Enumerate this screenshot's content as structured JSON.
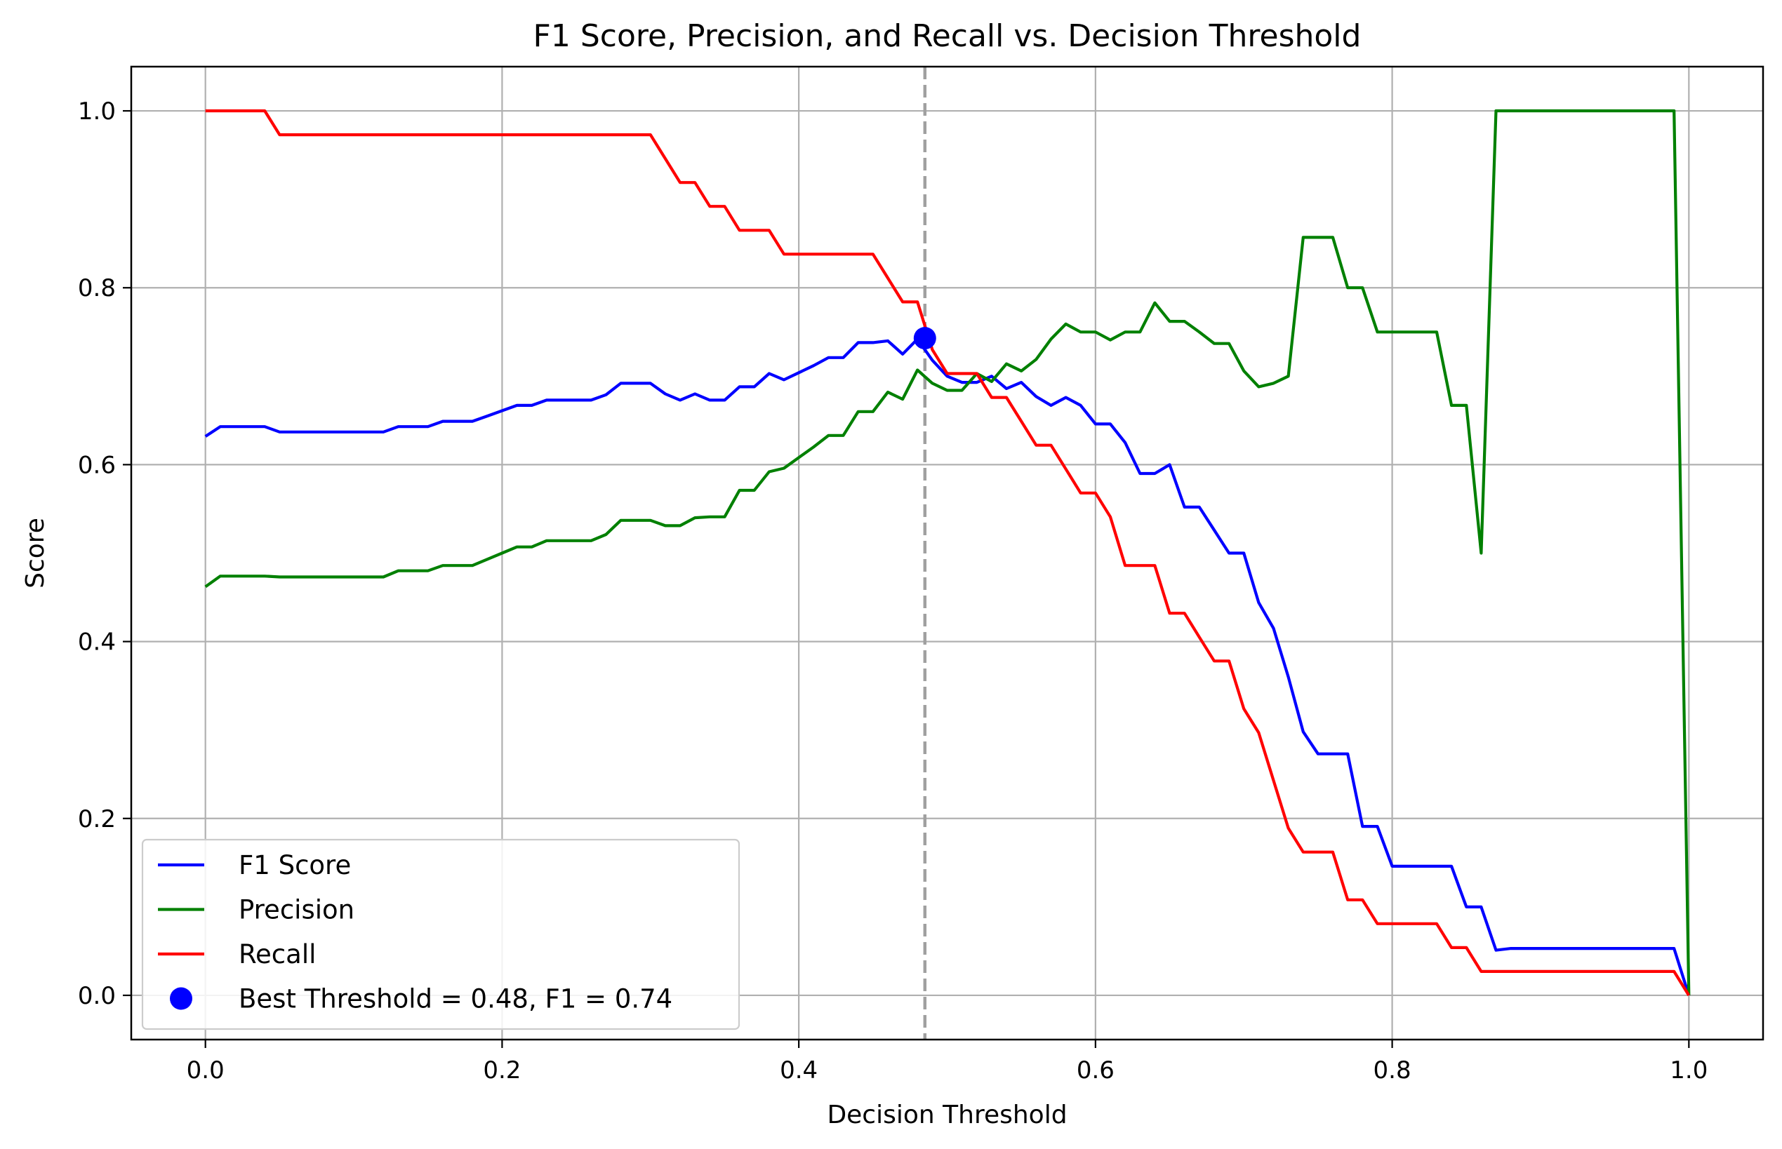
{
  "chart_data": {
    "type": "line",
    "title": "F1 Score, Precision, and Recall vs. Decision Threshold",
    "xlabel": "Decision Threshold",
    "ylabel": "Score",
    "xlim": [
      -0.05,
      1.05
    ],
    "ylim": [
      -0.05,
      1.05
    ],
    "xticks": [
      0.0,
      0.2,
      0.4,
      0.6,
      0.8,
      1.0
    ],
    "xtick_labels": [
      "0.0",
      "0.2",
      "0.4",
      "0.6",
      "0.8",
      "1.0"
    ],
    "yticks": [
      0.0,
      0.2,
      0.4,
      0.6,
      0.8,
      1.0
    ],
    "ytick_labels": [
      "0.0",
      "0.2",
      "0.4",
      "0.6",
      "0.8",
      "1.0"
    ],
    "grid": true,
    "legend_position": "lower-left",
    "series": [
      {
        "name": "F1 Score",
        "color": "#0000ff",
        "points": [
          [
            0.0,
            0.632
          ],
          [
            0.01,
            0.643
          ],
          [
            0.02,
            0.643
          ],
          [
            0.03,
            0.643
          ],
          [
            0.04,
            0.643
          ],
          [
            0.05,
            0.637
          ],
          [
            0.06,
            0.637
          ],
          [
            0.07,
            0.637
          ],
          [
            0.08,
            0.637
          ],
          [
            0.09,
            0.637
          ],
          [
            0.1,
            0.637
          ],
          [
            0.11,
            0.637
          ],
          [
            0.12,
            0.637
          ],
          [
            0.13,
            0.643
          ],
          [
            0.14,
            0.643
          ],
          [
            0.15,
            0.643
          ],
          [
            0.16,
            0.649
          ],
          [
            0.17,
            0.649
          ],
          [
            0.18,
            0.649
          ],
          [
            0.19,
            0.655
          ],
          [
            0.2,
            0.661
          ],
          [
            0.21,
            0.667
          ],
          [
            0.22,
            0.667
          ],
          [
            0.23,
            0.673
          ],
          [
            0.24,
            0.673
          ],
          [
            0.25,
            0.673
          ],
          [
            0.26,
            0.673
          ],
          [
            0.27,
            0.679
          ],
          [
            0.28,
            0.692
          ],
          [
            0.29,
            0.692
          ],
          [
            0.3,
            0.692
          ],
          [
            0.31,
            0.68
          ],
          [
            0.32,
            0.673
          ],
          [
            0.33,
            0.68
          ],
          [
            0.34,
            0.673
          ],
          [
            0.35,
            0.673
          ],
          [
            0.36,
            0.688
          ],
          [
            0.37,
            0.688
          ],
          [
            0.38,
            0.703
          ],
          [
            0.39,
            0.696
          ],
          [
            0.4,
            0.704
          ],
          [
            0.41,
            0.712
          ],
          [
            0.42,
            0.721
          ],
          [
            0.43,
            0.721
          ],
          [
            0.44,
            0.738
          ],
          [
            0.45,
            0.738
          ],
          [
            0.46,
            0.74
          ],
          [
            0.47,
            0.725
          ],
          [
            0.48,
            0.742
          ],
          [
            0.49,
            0.718
          ],
          [
            0.5,
            0.7
          ],
          [
            0.51,
            0.693
          ],
          [
            0.52,
            0.693
          ],
          [
            0.53,
            0.7
          ],
          [
            0.54,
            0.686
          ],
          [
            0.55,
            0.693
          ],
          [
            0.56,
            0.677
          ],
          [
            0.57,
            0.667
          ],
          [
            0.58,
            0.676
          ],
          [
            0.59,
            0.667
          ],
          [
            0.6,
            0.646
          ],
          [
            0.61,
            0.646
          ],
          [
            0.62,
            0.625
          ],
          [
            0.63,
            0.59
          ],
          [
            0.64,
            0.59
          ],
          [
            0.65,
            0.6
          ],
          [
            0.66,
            0.552
          ],
          [
            0.67,
            0.552
          ],
          [
            0.68,
            0.526
          ],
          [
            0.69,
            0.5
          ],
          [
            0.7,
            0.5
          ],
          [
            0.71,
            0.444
          ],
          [
            0.72,
            0.415
          ],
          [
            0.73,
            0.36
          ],
          [
            0.74,
            0.298
          ],
          [
            0.75,
            0.273
          ],
          [
            0.76,
            0.273
          ],
          [
            0.77,
            0.273
          ],
          [
            0.78,
            0.191
          ],
          [
            0.79,
            0.191
          ],
          [
            0.8,
            0.146
          ],
          [
            0.81,
            0.146
          ],
          [
            0.82,
            0.146
          ],
          [
            0.83,
            0.146
          ],
          [
            0.84,
            0.146
          ],
          [
            0.85,
            0.1
          ],
          [
            0.86,
            0.1
          ],
          [
            0.87,
            0.051
          ],
          [
            0.88,
            0.053
          ],
          [
            0.89,
            0.053
          ],
          [
            0.9,
            0.053
          ],
          [
            0.91,
            0.053
          ],
          [
            0.92,
            0.053
          ],
          [
            0.93,
            0.053
          ],
          [
            0.94,
            0.053
          ],
          [
            0.95,
            0.053
          ],
          [
            0.96,
            0.053
          ],
          [
            0.97,
            0.053
          ],
          [
            0.98,
            0.053
          ],
          [
            0.99,
            0.053
          ],
          [
            1.0,
            0.0
          ]
        ]
      },
      {
        "name": "Precision",
        "color": "#008000",
        "points": [
          [
            0.0,
            0.462
          ],
          [
            0.01,
            0.474
          ],
          [
            0.02,
            0.474
          ],
          [
            0.03,
            0.474
          ],
          [
            0.04,
            0.474
          ],
          [
            0.05,
            0.473
          ],
          [
            0.06,
            0.473
          ],
          [
            0.07,
            0.473
          ],
          [
            0.08,
            0.473
          ],
          [
            0.09,
            0.473
          ],
          [
            0.1,
            0.473
          ],
          [
            0.11,
            0.473
          ],
          [
            0.12,
            0.473
          ],
          [
            0.13,
            0.48
          ],
          [
            0.14,
            0.48
          ],
          [
            0.15,
            0.48
          ],
          [
            0.16,
            0.486
          ],
          [
            0.17,
            0.486
          ],
          [
            0.18,
            0.486
          ],
          [
            0.19,
            0.493
          ],
          [
            0.2,
            0.5
          ],
          [
            0.21,
            0.507
          ],
          [
            0.22,
            0.507
          ],
          [
            0.23,
            0.514
          ],
          [
            0.24,
            0.514
          ],
          [
            0.25,
            0.514
          ],
          [
            0.26,
            0.514
          ],
          [
            0.27,
            0.521
          ],
          [
            0.28,
            0.537
          ],
          [
            0.29,
            0.537
          ],
          [
            0.3,
            0.537
          ],
          [
            0.31,
            0.531
          ],
          [
            0.32,
            0.531
          ],
          [
            0.33,
            0.54
          ],
          [
            0.34,
            0.541
          ],
          [
            0.35,
            0.541
          ],
          [
            0.36,
            0.571
          ],
          [
            0.37,
            0.571
          ],
          [
            0.38,
            0.592
          ],
          [
            0.39,
            0.596
          ],
          [
            0.4,
            0.608
          ],
          [
            0.41,
            0.62
          ],
          [
            0.42,
            0.633
          ],
          [
            0.43,
            0.633
          ],
          [
            0.44,
            0.66
          ],
          [
            0.45,
            0.66
          ],
          [
            0.46,
            0.682
          ],
          [
            0.47,
            0.674
          ],
          [
            0.48,
            0.707
          ],
          [
            0.49,
            0.692
          ],
          [
            0.5,
            0.684
          ],
          [
            0.51,
            0.684
          ],
          [
            0.52,
            0.703
          ],
          [
            0.53,
            0.694
          ],
          [
            0.54,
            0.714
          ],
          [
            0.55,
            0.706
          ],
          [
            0.56,
            0.719
          ],
          [
            0.57,
            0.742
          ],
          [
            0.58,
            0.759
          ],
          [
            0.59,
            0.75
          ],
          [
            0.6,
            0.75
          ],
          [
            0.61,
            0.741
          ],
          [
            0.62,
            0.75
          ],
          [
            0.63,
            0.75
          ],
          [
            0.64,
            0.783
          ],
          [
            0.65,
            0.762
          ],
          [
            0.66,
            0.762
          ],
          [
            0.67,
            0.75
          ],
          [
            0.68,
            0.737
          ],
          [
            0.69,
            0.737
          ],
          [
            0.7,
            0.706
          ],
          [
            0.71,
            0.688
          ],
          [
            0.72,
            0.692
          ],
          [
            0.73,
            0.7
          ],
          [
            0.74,
            0.857
          ],
          [
            0.75,
            0.857
          ],
          [
            0.76,
            0.857
          ],
          [
            0.77,
            0.8
          ],
          [
            0.78,
            0.8
          ],
          [
            0.79,
            0.75
          ],
          [
            0.8,
            0.75
          ],
          [
            0.81,
            0.75
          ],
          [
            0.82,
            0.75
          ],
          [
            0.83,
            0.75
          ],
          [
            0.84,
            0.667
          ],
          [
            0.85,
            0.667
          ],
          [
            0.86,
            0.5
          ],
          [
            0.87,
            1.0
          ],
          [
            0.88,
            1.0
          ],
          [
            0.89,
            1.0
          ],
          [
            0.9,
            1.0
          ],
          [
            0.91,
            1.0
          ],
          [
            0.92,
            1.0
          ],
          [
            0.93,
            1.0
          ],
          [
            0.94,
            1.0
          ],
          [
            0.95,
            1.0
          ],
          [
            0.96,
            1.0
          ],
          [
            0.97,
            1.0
          ],
          [
            0.98,
            1.0
          ],
          [
            0.99,
            1.0
          ],
          [
            1.0,
            0.0
          ]
        ]
      },
      {
        "name": "Recall",
        "color": "#ff0000",
        "points": [
          [
            0.0,
            1.0
          ],
          [
            0.01,
            1.0
          ],
          [
            0.02,
            1.0
          ],
          [
            0.03,
            1.0
          ],
          [
            0.04,
            1.0
          ],
          [
            0.05,
            0.973
          ],
          [
            0.06,
            0.973
          ],
          [
            0.07,
            0.973
          ],
          [
            0.08,
            0.973
          ],
          [
            0.09,
            0.973
          ],
          [
            0.1,
            0.973
          ],
          [
            0.11,
            0.973
          ],
          [
            0.12,
            0.973
          ],
          [
            0.13,
            0.973
          ],
          [
            0.14,
            0.973
          ],
          [
            0.15,
            0.973
          ],
          [
            0.16,
            0.973
          ],
          [
            0.17,
            0.973
          ],
          [
            0.18,
            0.973
          ],
          [
            0.19,
            0.973
          ],
          [
            0.2,
            0.973
          ],
          [
            0.21,
            0.973
          ],
          [
            0.22,
            0.973
          ],
          [
            0.23,
            0.973
          ],
          [
            0.24,
            0.973
          ],
          [
            0.25,
            0.973
          ],
          [
            0.26,
            0.973
          ],
          [
            0.27,
            0.973
          ],
          [
            0.28,
            0.973
          ],
          [
            0.29,
            0.973
          ],
          [
            0.3,
            0.973
          ],
          [
            0.31,
            0.946
          ],
          [
            0.32,
            0.919
          ],
          [
            0.33,
            0.919
          ],
          [
            0.34,
            0.892
          ],
          [
            0.35,
            0.892
          ],
          [
            0.36,
            0.865
          ],
          [
            0.37,
            0.865
          ],
          [
            0.38,
            0.865
          ],
          [
            0.39,
            0.838
          ],
          [
            0.4,
            0.838
          ],
          [
            0.41,
            0.838
          ],
          [
            0.42,
            0.838
          ],
          [
            0.43,
            0.838
          ],
          [
            0.44,
            0.838
          ],
          [
            0.45,
            0.838
          ],
          [
            0.46,
            0.811
          ],
          [
            0.47,
            0.784
          ],
          [
            0.48,
            0.784
          ],
          [
            0.49,
            0.73
          ],
          [
            0.5,
            0.703
          ],
          [
            0.51,
            0.703
          ],
          [
            0.52,
            0.703
          ],
          [
            0.53,
            0.676
          ],
          [
            0.54,
            0.676
          ],
          [
            0.55,
            0.649
          ],
          [
            0.56,
            0.622
          ],
          [
            0.57,
            0.622
          ],
          [
            0.58,
            0.595
          ],
          [
            0.59,
            0.568
          ],
          [
            0.6,
            0.568
          ],
          [
            0.61,
            0.541
          ],
          [
            0.62,
            0.486
          ],
          [
            0.63,
            0.486
          ],
          [
            0.64,
            0.486
          ],
          [
            0.65,
            0.432
          ],
          [
            0.66,
            0.432
          ],
          [
            0.67,
            0.405
          ],
          [
            0.68,
            0.378
          ],
          [
            0.69,
            0.378
          ],
          [
            0.7,
            0.324
          ],
          [
            0.71,
            0.297
          ],
          [
            0.72,
            0.243
          ],
          [
            0.73,
            0.189
          ],
          [
            0.74,
            0.162
          ],
          [
            0.75,
            0.162
          ],
          [
            0.76,
            0.162
          ],
          [
            0.77,
            0.108
          ],
          [
            0.78,
            0.108
          ],
          [
            0.79,
            0.081
          ],
          [
            0.8,
            0.081
          ],
          [
            0.81,
            0.081
          ],
          [
            0.82,
            0.081
          ],
          [
            0.83,
            0.081
          ],
          [
            0.84,
            0.054
          ],
          [
            0.85,
            0.054
          ],
          [
            0.86,
            0.027
          ],
          [
            0.87,
            0.027
          ],
          [
            0.88,
            0.027
          ],
          [
            0.89,
            0.027
          ],
          [
            0.9,
            0.027
          ],
          [
            0.91,
            0.027
          ],
          [
            0.92,
            0.027
          ],
          [
            0.93,
            0.027
          ],
          [
            0.94,
            0.027
          ],
          [
            0.95,
            0.027
          ],
          [
            0.96,
            0.027
          ],
          [
            0.97,
            0.027
          ],
          [
            0.98,
            0.027
          ],
          [
            0.99,
            0.027
          ],
          [
            1.0,
            0.0
          ]
        ]
      }
    ],
    "best_point": {
      "label": "Best Threshold = 0.48, F1 = 0.74",
      "x": 0.485,
      "y": 0.743,
      "color": "#0000ff"
    },
    "vline": {
      "x": 0.485,
      "color": "#a0a0a0",
      "style": "dashed"
    }
  }
}
